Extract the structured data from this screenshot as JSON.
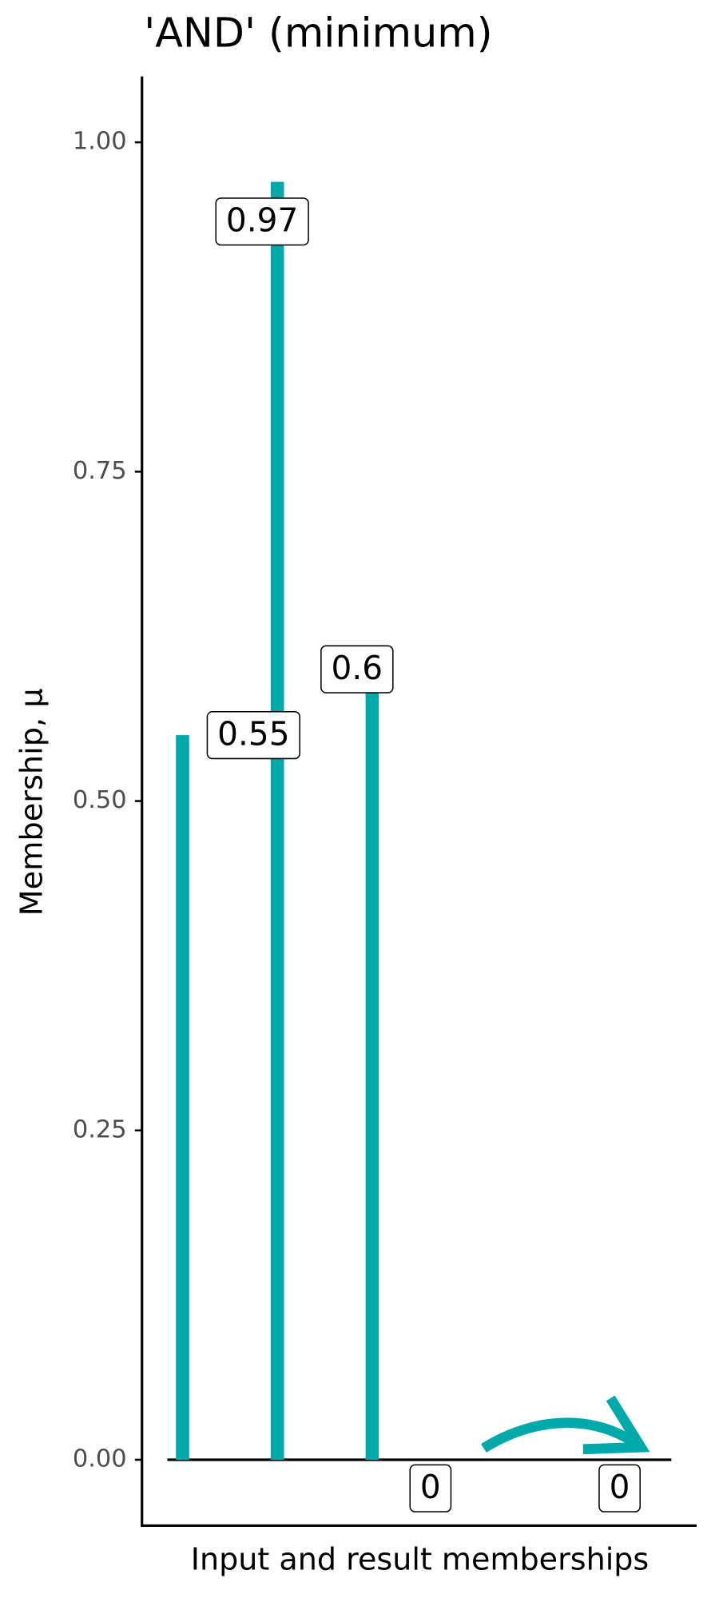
{
  "chart_data": {
    "type": "bar",
    "title": "'AND' (minimum)",
    "y_label": "Membership, μ",
    "x_label": "Input and result memberships",
    "categories": [
      null,
      null,
      null,
      null,
      null
    ],
    "values": [
      0.55,
      0.97,
      0.6,
      0,
      0
    ],
    "color": "#00a9a9",
    "ylim": [
      -0.05,
      1.05
    ],
    "yticks": [
      {
        "value": 0,
        "label": "0.00"
      },
      {
        "value": 0.25,
        "label": "0.25"
      },
      {
        "value": 0.5,
        "label": "0.50"
      },
      {
        "value": 0.75,
        "label": "0.75"
      },
      {
        "value": 1,
        "label": "1.00"
      }
    ],
    "grid": false
  }
}
